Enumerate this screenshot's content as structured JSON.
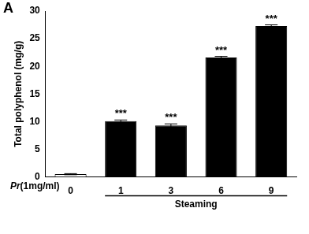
{
  "chart_data": {
    "type": "bar",
    "panel_label": "A",
    "y_label": "Total polyphenol (mg/g)",
    "x_label": "Pr(1mg/ml)",
    "group_label": "Steaming",
    "group_categories": [
      "1",
      "3",
      "6",
      "9"
    ],
    "categories": [
      "0",
      "1",
      "3",
      "6",
      "9"
    ],
    "values": [
      0.5,
      10.1,
      9.3,
      21.6,
      27.3
    ],
    "errors": [
      0.1,
      0.2,
      0.3,
      0.2,
      0.2
    ],
    "annotations": [
      null,
      "***",
      "***",
      "***",
      "***"
    ],
    "colors": [
      "#ffffff",
      "#000000",
      "#000000",
      "#000000",
      "#000000"
    ],
    "ylim": [
      0,
      30
    ],
    "yticks": [
      0,
      5,
      10,
      15,
      20,
      25,
      30
    ],
    "grid": false
  }
}
